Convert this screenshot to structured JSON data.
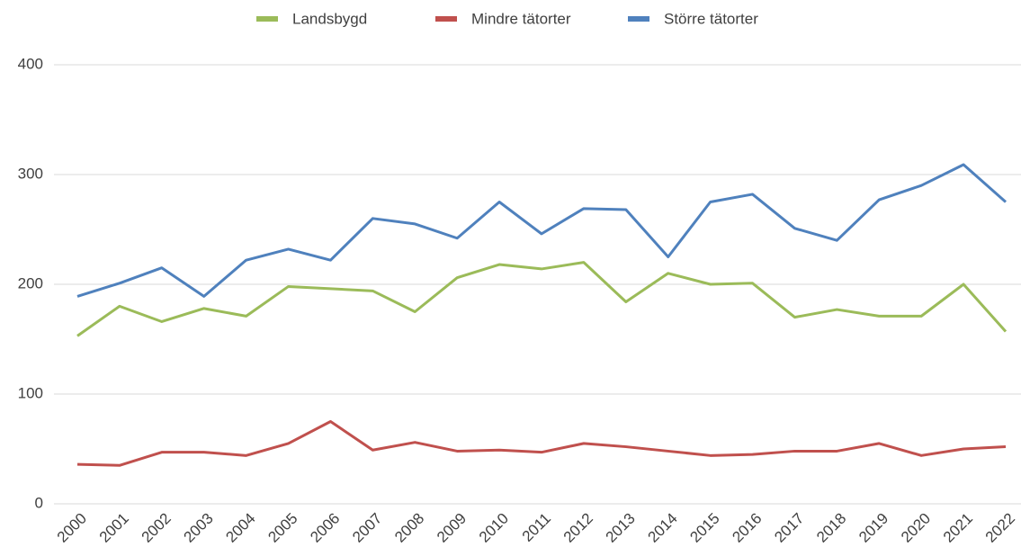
{
  "chart_data": {
    "type": "line",
    "categories": [
      "2000",
      "2001",
      "2002",
      "2003",
      "2004",
      "2005",
      "2006",
      "2007",
      "2008",
      "2009",
      "2010",
      "2011",
      "2012",
      "2013",
      "2014",
      "2015",
      "2016",
      "2017",
      "2018",
      "2019",
      "2020",
      "2021",
      "2022"
    ],
    "series": [
      {
        "name": "Landsbygd",
        "color": "#9bbb59",
        "values": [
          153,
          180,
          166,
          178,
          171,
          198,
          196,
          194,
          175,
          206,
          218,
          214,
          220,
          184,
          210,
          200,
          201,
          170,
          177,
          171,
          171,
          200,
          157
        ]
      },
      {
        "name": "Mindre tätorter",
        "color": "#c0504d",
        "values": [
          36,
          35,
          47,
          47,
          44,
          55,
          75,
          49,
          56,
          48,
          49,
          47,
          55,
          52,
          48,
          44,
          45,
          48,
          48,
          55,
          44,
          50,
          52
        ]
      },
      {
        "name": "Större tätorter",
        "color": "#4f81bd",
        "values": [
          189,
          201,
          215,
          189,
          222,
          232,
          222,
          260,
          255,
          242,
          275,
          246,
          269,
          268,
          225,
          275,
          282,
          251,
          240,
          277,
          290,
          309,
          275
        ]
      }
    ],
    "ylim": [
      0,
      400
    ],
    "yticks": [
      0,
      100,
      200,
      300,
      400
    ],
    "grid": true,
    "legend": "top"
  }
}
